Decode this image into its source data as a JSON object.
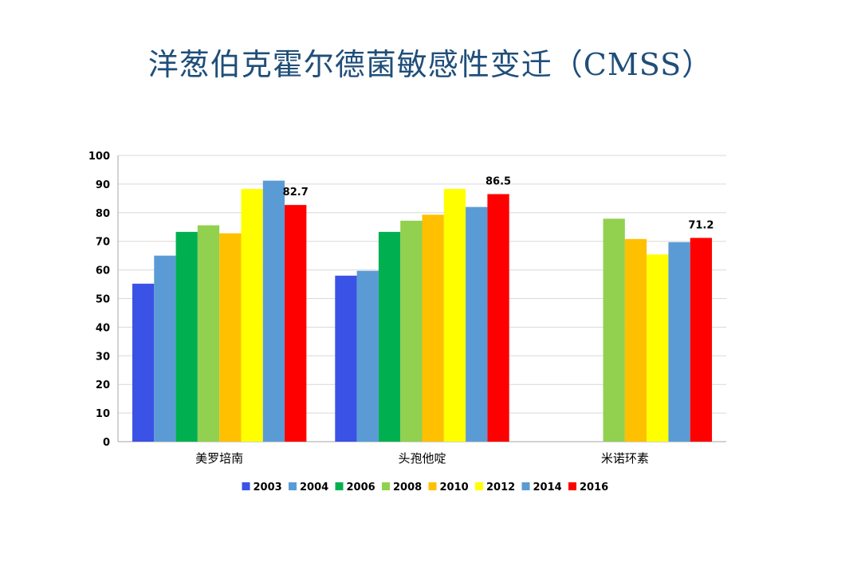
{
  "title": "洋葱伯克霍尔德菌敏感性变迁（CMSS）",
  "chart_data": {
    "type": "bar",
    "categories": [
      "美罗培南",
      "头孢他啶",
      "米诺环素"
    ],
    "series": [
      {
        "name": "2003",
        "color": "#3a52e6",
        "values": [
          55.2,
          58.0,
          null
        ]
      },
      {
        "name": "2004",
        "color": "#5b9bd5",
        "values": [
          65.0,
          59.7,
          null
        ]
      },
      {
        "name": "2006",
        "color": "#00b050",
        "values": [
          73.3,
          73.3,
          null
        ]
      },
      {
        "name": "2008",
        "color": "#92d050",
        "values": [
          75.6,
          77.2,
          77.9
        ]
      },
      {
        "name": "2010",
        "color": "#ffc000",
        "values": [
          72.8,
          79.3,
          70.8
        ]
      },
      {
        "name": "2012",
        "color": "#ffff00",
        "values": [
          88.3,
          88.3,
          65.4
        ]
      },
      {
        "name": "2014",
        "color": "#5b9bd5",
        "values": [
          91.2,
          82.0,
          69.7
        ]
      },
      {
        "name": "2016",
        "color": "#ff0000",
        "values": [
          82.7,
          86.5,
          71.2
        ]
      }
    ],
    "data_labels": [
      {
        "series": "2016",
        "category": "美罗培南",
        "text": "82.7"
      },
      {
        "series": "2016",
        "category": "头孢他啶",
        "text": "86.5"
      },
      {
        "series": "2016",
        "category": "米诺环素",
        "text": "71.2"
      }
    ],
    "ylim": [
      0,
      100
    ],
    "yticks": [
      0,
      10,
      20,
      30,
      40,
      50,
      60,
      70,
      80,
      90,
      100
    ],
    "grid": true,
    "legend_position": "bottom"
  }
}
